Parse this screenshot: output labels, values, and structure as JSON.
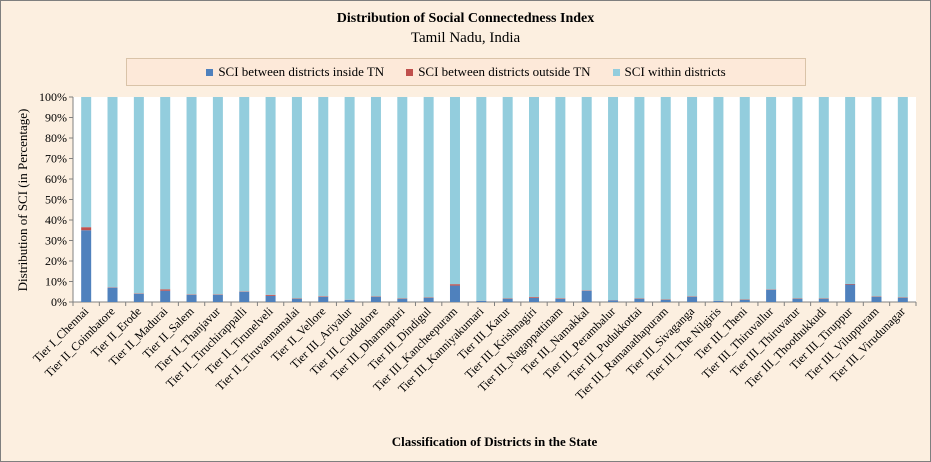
{
  "chart_data": {
    "type": "bar",
    "stacked": true,
    "percent_stacked": true,
    "title": "Distribution of Social Connectedness Index",
    "subtitle": "Tamil Nadu, India",
    "xlabel": "Classification of Districts in the State",
    "ylabel": "Distribution of SCI (in Percentage)",
    "ylim": [
      0,
      100
    ],
    "yticks": [
      "0%",
      "10%",
      "20%",
      "30%",
      "40%",
      "50%",
      "60%",
      "70%",
      "80%",
      "90%",
      "100%"
    ],
    "grid": false,
    "legend_position": "top",
    "categories": [
      "Tier I_Chennai",
      "Tier II_Coimbatore",
      "Tier II_Erode",
      "Tier II_Madurai",
      "Tier II_Salem",
      "Tier II_Thanjavur",
      "Tier II_Tiruchirappalli",
      "Tier II_Tirunelveli",
      "Tier II_Tiruvannamalai",
      "Tier II_Vellore",
      "Tier III_Ariyalur",
      "Tier III_Cuddalore",
      "Tier III_Dharmapuri",
      "Tier III_Dindigul",
      "Tier III_Kancheepuram",
      "Tier III_Kanniyakumari",
      "Tier III_Karur",
      "Tier III_Krishnagiri",
      "Tier III_Nagappattinam",
      "Tier III_Namakkal",
      "Tier III_Perambalur",
      "Tier III_Pudukkottai",
      "Tier III_Ramanathapuram",
      "Tier III_Sivaganga",
      "Tier III_The Nilgiris",
      "Tier III_Theni",
      "Tier III_Thiruvallur",
      "Tier III_Thiruvarur",
      "Tier III_Thoothukkudi",
      "Tier III_Tiruppur",
      "Tier III_Viluppuram",
      "Tier III_Virudunagar"
    ],
    "series": [
      {
        "name": "SCI between districts inside TN",
        "color": "#4f81bd",
        "values": [
          35.0,
          7.0,
          4.0,
          5.5,
          3.5,
          3.5,
          5.0,
          3.0,
          1.5,
          2.5,
          1.0,
          2.5,
          1.5,
          2.0,
          8.0,
          0.5,
          1.5,
          2.0,
          1.5,
          5.5,
          0.8,
          1.5,
          1.0,
          2.5,
          0.5,
          1.0,
          6.0,
          1.5,
          1.5,
          8.5,
          2.5,
          2.0
        ]
      },
      {
        "name": "SCI between districts outside TN",
        "color": "#c0504d",
        "values": [
          1.5,
          0.2,
          0.2,
          0.7,
          0.2,
          0.2,
          0.2,
          0.5,
          0.2,
          0.3,
          0.1,
          0.2,
          0.2,
          0.2,
          0.7,
          0.1,
          0.2,
          0.4,
          0.3,
          0.2,
          0.1,
          0.2,
          0.2,
          0.2,
          0.1,
          0.2,
          0.2,
          0.2,
          0.2,
          0.3,
          0.2,
          0.2
        ]
      },
      {
        "name": "SCI within districts",
        "color": "#93cddd",
        "values": [
          63.5,
          92.8,
          95.8,
          93.8,
          96.3,
          96.3,
          94.8,
          96.5,
          98.3,
          97.2,
          98.9,
          97.3,
          98.3,
          97.8,
          91.3,
          99.4,
          98.3,
          97.6,
          98.2,
          94.3,
          99.1,
          98.3,
          98.8,
          97.3,
          99.4,
          98.8,
          93.8,
          98.3,
          98.3,
          91.2,
          97.3,
          97.8
        ]
      }
    ]
  }
}
